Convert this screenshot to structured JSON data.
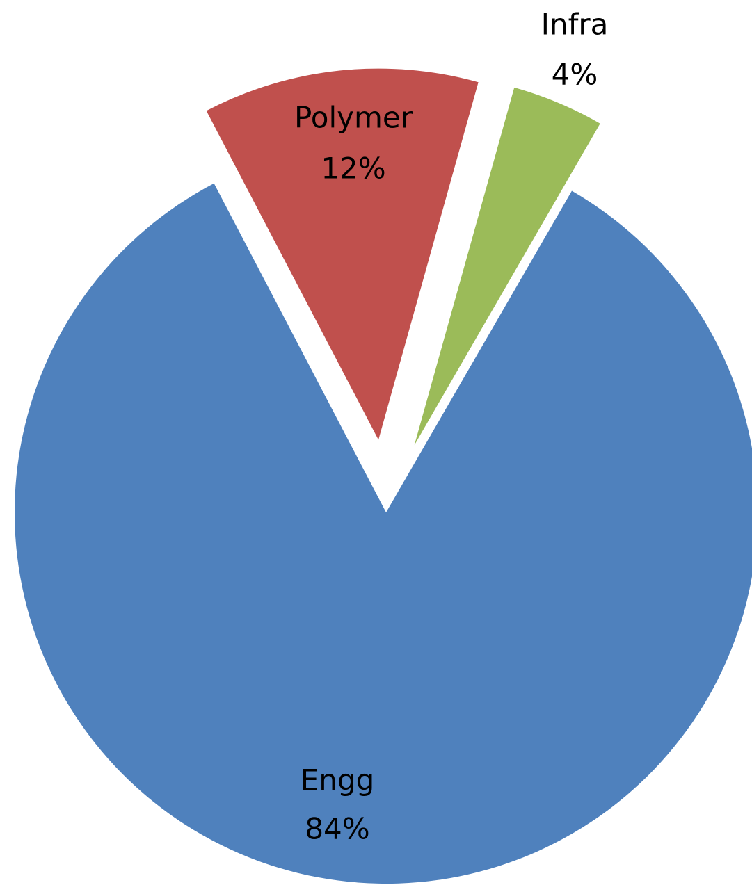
{
  "chart_data": {
    "type": "pie",
    "categories": [
      "Engg",
      "Polymer",
      "Infra"
    ],
    "values": [
      84,
      12,
      4
    ],
    "value_labels": [
      "84%",
      "12%",
      "4%"
    ],
    "colors": [
      "#4f81bd",
      "#c0504d",
      "#9bbb59"
    ]
  }
}
